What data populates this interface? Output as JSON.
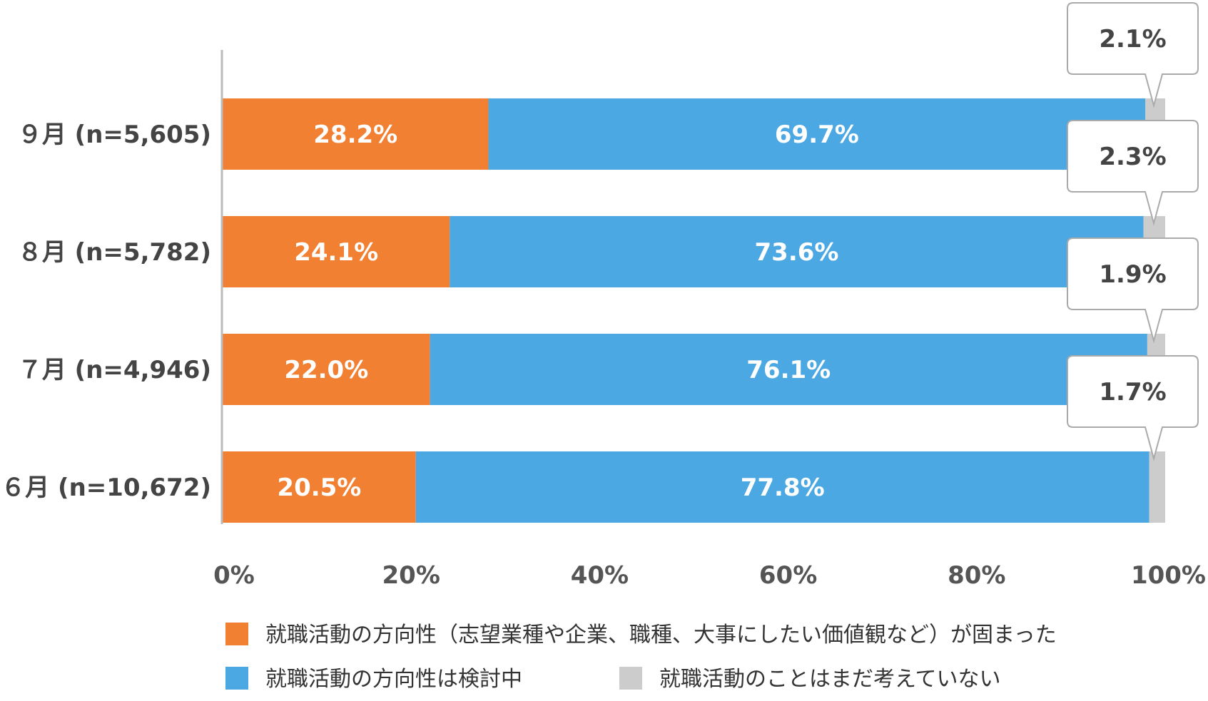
{
  "chart_data": {
    "type": "bar",
    "orientation": "horizontal",
    "stacked": true,
    "categories": [
      "９月 (n=5,605)",
      "８月 (n=5,782)",
      "７月 (n=4,946)",
      "６月 (n=10,672)"
    ],
    "series": [
      {
        "name": "就職活動の方向性（志望業種や企業、職種、大事にしたい価値観など）が固まった",
        "color": "#F28033",
        "values": [
          28.2,
          24.1,
          22.0,
          20.5
        ],
        "labels": [
          "28.2%",
          "24.1%",
          "22.0%",
          "20.5%"
        ]
      },
      {
        "name": "就職活動の方向性は検討中",
        "color": "#4BA8E3",
        "values": [
          69.7,
          73.6,
          76.1,
          77.8
        ],
        "labels": [
          "69.7%",
          "73.6%",
          "76.1%",
          "77.8%"
        ]
      },
      {
        "name": "就職活動のことはまだ考えていない",
        "color": "#CCCCCC",
        "values": [
          2.1,
          2.3,
          1.9,
          1.7
        ],
        "labels": [
          "2.1%",
          "2.3%",
          "1.9%",
          "1.7%"
        ]
      }
    ],
    "xlim": [
      0,
      100
    ],
    "ticks": [
      0,
      20,
      40,
      60,
      80,
      100
    ],
    "tick_labels": [
      "0%",
      "20%",
      "40%",
      "60%",
      "80%",
      "100%"
    ],
    "grid": false,
    "legend_position": "bottom"
  }
}
